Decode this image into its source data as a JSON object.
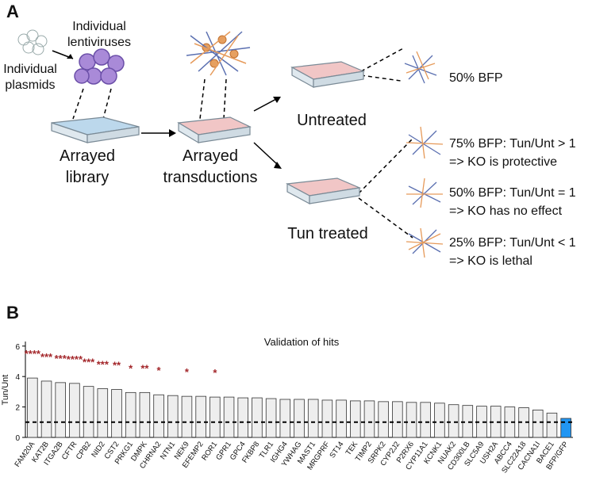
{
  "panel_a": {
    "letter": "A",
    "lentiviruses": [
      "Individual",
      "lentiviruses"
    ],
    "plasmids": [
      "Individual",
      "plasmids"
    ],
    "library": [
      "Arrayed",
      "library"
    ],
    "transductions": [
      "Arrayed",
      "transductions"
    ],
    "untreated": "Untreated",
    "tun_treated": "Tun treated",
    "untreated_result": "50% BFP",
    "outcomes": [
      [
        "75% BFP: Tun/Unt > 1",
        "=> KO is protective"
      ],
      [
        "50% BFP: Tun/Unt = 1",
        "=> KO has no effect"
      ],
      [
        "25% BFP: Tun/Unt < 1",
        "=> KO is lethal"
      ]
    ]
  },
  "panel_b_letter": "B",
  "chart_data": {
    "type": "bar",
    "title": "Validation of hits",
    "y_label": "Tun/Unt",
    "categories": [
      "FAM20A",
      "KAT2B",
      "ITGA2B",
      "CFTR",
      "CPB2",
      "NID2",
      "CST2",
      "PRKG1",
      "DMPK",
      "CHRNA2",
      "NTN1",
      "NEK9",
      "EFEMP2",
      "ROR1",
      "GPR1",
      "GPC4",
      "FKBP8",
      "TLR1",
      "IGHG4",
      "YWHAG",
      "MAST1",
      "MRGPRF",
      "ST14",
      "TEK",
      "TIMP2",
      "SRPK2",
      "CYP2J2",
      "P2RX6",
      "CYP11A1",
      "KCNK1",
      "NUAK2",
      "CD300LB",
      "SLC5A9",
      "USH2A",
      "ABCC4",
      "SLC22A18",
      "CACNA1I",
      "BACE1",
      "BFP/GFP"
    ],
    "values": [
      3.9,
      3.7,
      3.6,
      3.55,
      3.35,
      3.2,
      3.15,
      2.95,
      2.95,
      2.8,
      2.75,
      2.7,
      2.7,
      2.65,
      2.65,
      2.6,
      2.6,
      2.55,
      2.5,
      2.5,
      2.5,
      2.45,
      2.45,
      2.4,
      2.4,
      2.35,
      2.35,
      2.3,
      2.3,
      2.25,
      2.15,
      2.1,
      2.05,
      2.05,
      2.0,
      1.95,
      1.8,
      1.6,
      1.25
    ],
    "colors": [
      "#eeeeee",
      "#eeeeee",
      "#eeeeee",
      "#eeeeee",
      "#eeeeee",
      "#eeeeee",
      "#eeeeee",
      "#eeeeee",
      "#eeeeee",
      "#eeeeee",
      "#eeeeee",
      "#eeeeee",
      "#eeeeee",
      "#eeeeee",
      "#eeeeee",
      "#eeeeee",
      "#eeeeee",
      "#eeeeee",
      "#eeeeee",
      "#eeeeee",
      "#eeeeee",
      "#eeeeee",
      "#eeeeee",
      "#eeeeee",
      "#eeeeee",
      "#eeeeee",
      "#eeeeee",
      "#eeeeee",
      "#eeeeee",
      "#eeeeee",
      "#eeeeee",
      "#eeeeee",
      "#eeeeee",
      "#eeeeee",
      "#eeeeee",
      "#eeeeee",
      "#eeeeee",
      "#eeeeee",
      "#2196f3"
    ],
    "significance": [
      "****",
      "***",
      "***",
      "****",
      "***",
      "***",
      "**",
      "*",
      "**",
      "*",
      null,
      "*",
      null,
      "*",
      null,
      null,
      null,
      null,
      null,
      null,
      null,
      null,
      null,
      null,
      null,
      null,
      null,
      null,
      null,
      null,
      null,
      null,
      null,
      null,
      null,
      null,
      null,
      null,
      null
    ],
    "significance_color": "#a3262a",
    "reference_line": 1,
    "ylim": [
      0,
      6.3
    ],
    "yticks": [
      0,
      2,
      4,
      6
    ]
  }
}
